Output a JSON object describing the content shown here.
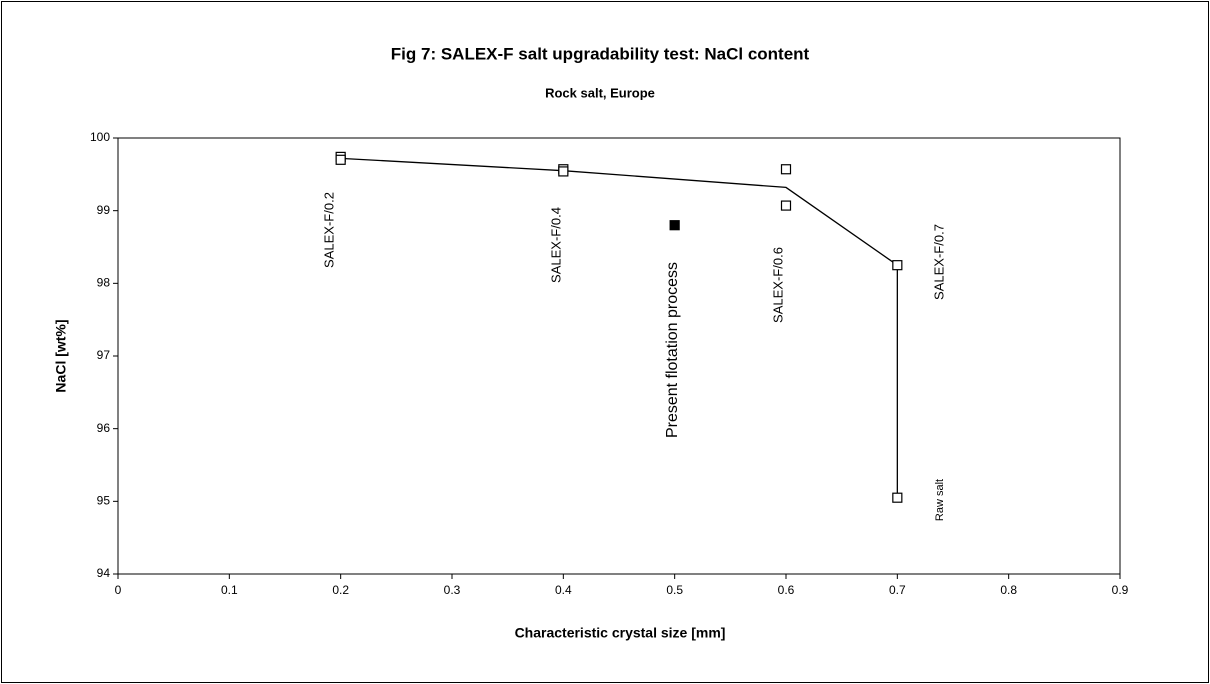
{
  "chart_data": {
    "type": "scatter",
    "title": "Fig 7:   SALEX-F salt upgradability test: NaCl content",
    "subtitle": "Rock salt, Europe",
    "x_label": "Characteristic crystal size [mm]",
    "y_label": "NaCl [wt%]",
    "xlim": [
      0,
      0.9
    ],
    "xticks": [
      0,
      0.1,
      0.2,
      0.3,
      0.4,
      0.5,
      0.6,
      0.7,
      0.8,
      0.9
    ],
    "ylim": [
      94,
      100
    ],
    "yticks": [
      94,
      95,
      96,
      97,
      98,
      99,
      100
    ],
    "grid": false,
    "series": [
      {
        "mode": "line",
        "color": "#000000",
        "x": [
          0.2,
          0.4,
          0.6,
          0.7,
          0.7
        ],
        "values": [
          99.72,
          99.55,
          99.32,
          98.25,
          95.05
        ]
      },
      {
        "mode": "markers",
        "marker": "open-square",
        "color": "#000000",
        "x": [
          0.2,
          0.2,
          0.4,
          0.4,
          0.6,
          0.6,
          0.7,
          0.7
        ],
        "values": [
          99.74,
          99.7,
          99.57,
          99.54,
          99.57,
          99.07,
          98.25,
          95.05
        ]
      },
      {
        "mode": "markers",
        "marker": "filled-square",
        "color": "#000000",
        "x": [
          0.5
        ],
        "values": [
          98.8
        ]
      }
    ],
    "annotations": [
      "SALEX-F/0.2",
      "SALEX-F/0.4",
      "Present flotation process",
      "SALEX-F/0.6",
      "SALEX-F/0.7",
      "Raw salt"
    ]
  }
}
